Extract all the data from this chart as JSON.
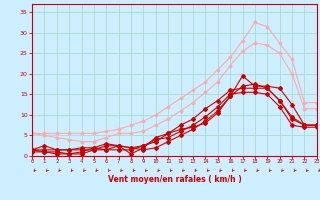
{
  "background_color": "#cceeff",
  "grid_color": "#aaddcc",
  "xlabel": "Vent moyen/en rafales ( km/h )",
  "xlabel_color": "#cc0000",
  "tick_color": "#cc0000",
  "ylim": [
    0,
    37
  ],
  "xlim": [
    0,
    23
  ],
  "yticks": [
    0,
    5,
    10,
    15,
    20,
    25,
    30,
    35
  ],
  "xticks": [
    0,
    1,
    2,
    3,
    4,
    5,
    6,
    7,
    8,
    9,
    10,
    11,
    12,
    13,
    14,
    15,
    16,
    17,
    18,
    19,
    20,
    21,
    22,
    23
  ],
  "series": [
    {
      "x": [
        0,
        1,
        2,
        3,
        4,
        5,
        6,
        7,
        8,
        9,
        10,
        11,
        12,
        13,
        14,
        15,
        16,
        17,
        18,
        19,
        20,
        21,
        22,
        23
      ],
      "y": [
        5.5,
        5.5,
        5.5,
        5.5,
        5.5,
        5.5,
        6.0,
        6.5,
        7.5,
        8.5,
        10.0,
        12.0,
        14.0,
        16.0,
        18.0,
        21.0,
        24.0,
        28.0,
        32.5,
        31.5,
        27.5,
        23.5,
        13.0,
        13.0
      ],
      "color": "#ffaaaa",
      "marker": "D",
      "markersize": 1.5,
      "linewidth": 0.8
    },
    {
      "x": [
        0,
        1,
        2,
        3,
        4,
        5,
        6,
        7,
        8,
        9,
        10,
        11,
        12,
        13,
        14,
        15,
        16,
        17,
        18,
        19,
        20,
        21,
        22,
        23
      ],
      "y": [
        5.5,
        5.0,
        4.5,
        4.0,
        3.5,
        3.5,
        4.5,
        5.5,
        5.5,
        6.0,
        7.5,
        9.0,
        11.0,
        13.0,
        15.5,
        18.0,
        22.0,
        25.5,
        27.5,
        27.0,
        25.0,
        20.0,
        11.5,
        11.5
      ],
      "color": "#ffaaaa",
      "marker": "D",
      "markersize": 1.5,
      "linewidth": 0.8
    },
    {
      "x": [
        0,
        1,
        2,
        3,
        4,
        5,
        6,
        7,
        8,
        9,
        10,
        11,
        12,
        13,
        14,
        15,
        16,
        17,
        18,
        19,
        20,
        21,
        22,
        23
      ],
      "y": [
        1.5,
        1.0,
        0.5,
        0.5,
        1.0,
        2.0,
        3.0,
        2.5,
        0.5,
        2.0,
        4.5,
        5.5,
        6.5,
        7.0,
        8.0,
        10.5,
        14.5,
        19.5,
        17.0,
        17.0,
        16.5,
        12.5,
        7.5,
        7.5
      ],
      "color": "#cc0000",
      "marker": "D",
      "markersize": 2.0,
      "linewidth": 0.8
    },
    {
      "x": [
        0,
        1,
        2,
        3,
        4,
        5,
        6,
        7,
        8,
        9,
        10,
        11,
        12,
        13,
        14,
        15,
        16,
        17,
        18,
        19,
        20,
        21,
        22,
        23
      ],
      "y": [
        1.5,
        2.5,
        1.5,
        1.5,
        2.0,
        2.0,
        1.5,
        2.5,
        2.0,
        1.5,
        2.0,
        3.5,
        5.0,
        6.5,
        8.5,
        11.0,
        14.5,
        17.0,
        17.5,
        16.5,
        13.5,
        9.5,
        7.5,
        7.5
      ],
      "color": "#cc0000",
      "marker": "D",
      "markersize": 2.0,
      "linewidth": 0.8
    },
    {
      "x": [
        0,
        1,
        2,
        3,
        4,
        5,
        6,
        7,
        8,
        9,
        10,
        11,
        12,
        13,
        14,
        15,
        16,
        17,
        18,
        19,
        20,
        21,
        22,
        23
      ],
      "y": [
        1.5,
        1.5,
        1.5,
        1.5,
        1.5,
        1.5,
        1.5,
        1.5,
        1.5,
        2.5,
        3.5,
        5.5,
        7.5,
        9.0,
        11.5,
        13.5,
        16.0,
        16.5,
        16.5,
        16.5,
        13.5,
        9.0,
        7.5,
        7.5
      ],
      "color": "#cc0000",
      "marker": "D",
      "markersize": 2.0,
      "linewidth": 0.8
    },
    {
      "x": [
        0,
        1,
        2,
        3,
        4,
        5,
        6,
        7,
        8,
        9,
        10,
        11,
        12,
        13,
        14,
        15,
        16,
        17,
        18,
        19,
        20,
        21,
        22,
        23
      ],
      "y": [
        1.0,
        1.0,
        1.0,
        0.5,
        0.5,
        1.5,
        2.5,
        2.5,
        2.0,
        2.5,
        4.0,
        4.5,
        6.0,
        7.5,
        9.5,
        12.0,
        15.0,
        15.5,
        15.5,
        15.0,
        12.0,
        7.5,
        7.0,
        7.0
      ],
      "color": "#cc0000",
      "marker": "D",
      "markersize": 2.0,
      "linewidth": 0.8
    }
  ]
}
